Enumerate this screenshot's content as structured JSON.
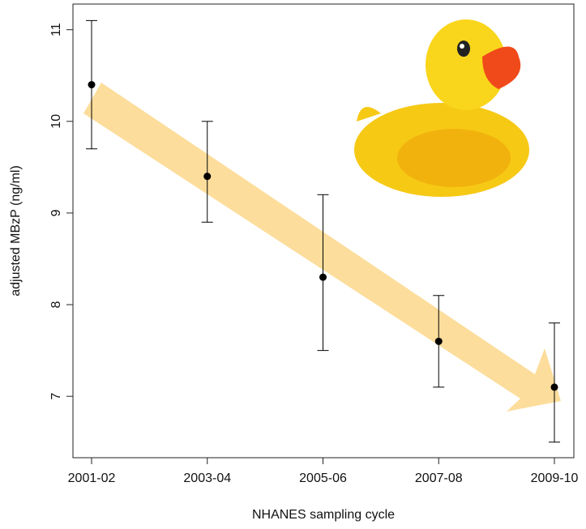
{
  "chart_data": {
    "type": "errorbar",
    "x_label": "NHANES sampling cycle",
    "y_label": "adjusted MBzP (ng/ml)",
    "categories": [
      "2001-02",
      "2003-04",
      "2005-06",
      "2007-08",
      "2009-10"
    ],
    "values": [
      10.4,
      9.4,
      8.3,
      7.6,
      7.1
    ],
    "lower": [
      9.7,
      8.9,
      7.5,
      7.1,
      6.5
    ],
    "upper": [
      11.1,
      10.0,
      9.2,
      8.1,
      7.8
    ],
    "color": "#000000",
    "ylim": [
      6.33,
      11.28
    ],
    "yticks": [
      7,
      8,
      9,
      10,
      11
    ]
  }
}
